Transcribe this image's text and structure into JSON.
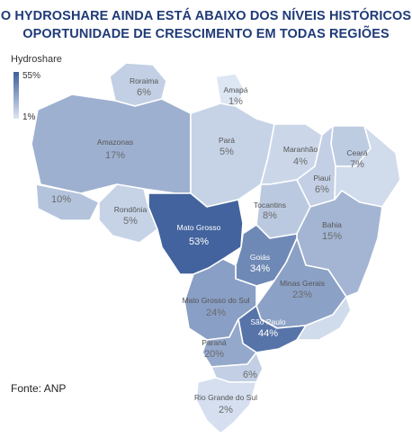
{
  "title_line1": "O HYDROSHARE AINDA ESTÁ ABAIXO DOS NÍVEIS HISTÓRICOS",
  "title_line2": "OPORTUNIDADE DE CRESCIMENTO EM TODAS REGIÕES",
  "legend": {
    "title": "Hydroshare",
    "max": "55%",
    "min": "1%",
    "color_max": "#3e5f9b",
    "color_min": "#dde6f3"
  },
  "source": "Fonte: ANP",
  "states": [
    {
      "id": "roraima",
      "name": "Roraima",
      "value": "6%",
      "share": 6
    },
    {
      "id": "amapa",
      "name": "Amapá",
      "value": "1%",
      "share": 1
    },
    {
      "id": "amazonas",
      "name": "Amazonas",
      "value": "17%",
      "share": 17
    },
    {
      "id": "para",
      "name": "Pará",
      "value": "5%",
      "share": 5
    },
    {
      "id": "maranhao",
      "name": "Maranhão",
      "value": "4%",
      "share": 4
    },
    {
      "id": "ceara",
      "name": "Ceará",
      "value": "7%",
      "share": 7
    },
    {
      "id": "piaui",
      "name": "Piauí",
      "value": "6%",
      "share": 6
    },
    {
      "id": "acre",
      "name": "",
      "value": "10%",
      "share": 10
    },
    {
      "id": "rondonia",
      "name": "Rondônia",
      "value": "5%",
      "share": 5
    },
    {
      "id": "mato-grosso",
      "name": "Mato Grosso",
      "value": "53%",
      "share": 53
    },
    {
      "id": "tocantins",
      "name": "Tocantins",
      "value": "8%",
      "share": 8
    },
    {
      "id": "bahia",
      "name": "Bahia",
      "value": "15%",
      "share": 15
    },
    {
      "id": "goias",
      "name": "Goiás",
      "value": "34%",
      "share": 34
    },
    {
      "id": "minas-gerais",
      "name": "Minas Gerais",
      "value": "23%",
      "share": 23
    },
    {
      "id": "mato-grosso-do-sul",
      "name": "Mato Grosso do Sul",
      "value": "24%",
      "share": 24
    },
    {
      "id": "sao-paulo",
      "name": "São Paulo",
      "value": "44%",
      "share": 44
    },
    {
      "id": "parana",
      "name": "Paraná",
      "value": "20%",
      "share": 20
    },
    {
      "id": "santa-catarina",
      "name": "",
      "value": "6%",
      "share": 6
    },
    {
      "id": "rio-grande-do-sul",
      "name": "Rio Grande do Sul",
      "value": "2%",
      "share": 2
    }
  ]
}
